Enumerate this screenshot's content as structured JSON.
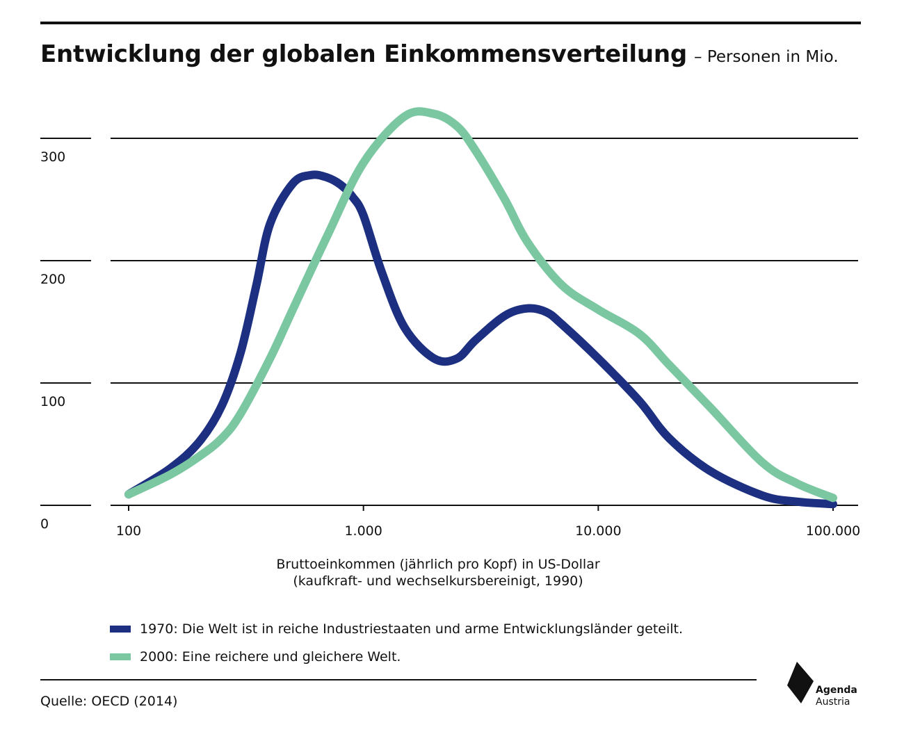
{
  "header": {
    "title": "Entwicklung der globalen Einkommensverteilung",
    "subtitle": "– Personen in Mio."
  },
  "chart_data": {
    "type": "line",
    "title": "Entwicklung der globalen Einkommensverteilung",
    "subtitle": "– Personen in Mio.",
    "xlabel_line1": "Bruttoeinkommen (jährlich pro Kopf) in US-Dollar",
    "xlabel_line2": "(kaufkraft- und wechselkursbereinigt, 1990)",
    "ylabel": "",
    "x_scale": "log",
    "xlim": [
      100,
      100000
    ],
    "ylim": [
      0,
      300
    ],
    "x_ticks": [
      100,
      1000,
      10000,
      100000
    ],
    "x_tick_labels": [
      "100",
      "1.000",
      "10.000",
      "100.000"
    ],
    "y_ticks": [
      0,
      100,
      200,
      300
    ],
    "y_tick_labels": [
      "0",
      "100",
      "200",
      "300"
    ],
    "grid": "horizontal",
    "legend_position": "bottom",
    "series": [
      {
        "name": "1970: Die Welt ist in reiche Industriestaaten und arme Entwicklungsländer geteilt.",
        "color": "#1c2f80",
        "points": [
          [
            100,
            9
          ],
          [
            150,
            30
          ],
          [
            200,
            52
          ],
          [
            250,
            82
          ],
          [
            300,
            125
          ],
          [
            350,
            180
          ],
          [
            400,
            230
          ],
          [
            500,
            263
          ],
          [
            600,
            270
          ],
          [
            700,
            268
          ],
          [
            800,
            262
          ],
          [
            900,
            252
          ],
          [
            1000,
            237
          ],
          [
            1200,
            190
          ],
          [
            1500,
            145
          ],
          [
            2000,
            120
          ],
          [
            2500,
            120
          ],
          [
            3000,
            135
          ],
          [
            4000,
            155
          ],
          [
            5000,
            161
          ],
          [
            6000,
            158
          ],
          [
            7000,
            148
          ],
          [
            10000,
            120
          ],
          [
            15000,
            85
          ],
          [
            20000,
            55
          ],
          [
            30000,
            28
          ],
          [
            50000,
            8
          ],
          [
            70000,
            3
          ],
          [
            100000,
            1
          ]
        ]
      },
      {
        "name": "2000: Eine reichere und gleichere Welt.",
        "color": "#7bc7a2",
        "points": [
          [
            100,
            9
          ],
          [
            150,
            25
          ],
          [
            200,
            40
          ],
          [
            250,
            55
          ],
          [
            300,
            75
          ],
          [
            400,
            120
          ],
          [
            500,
            160
          ],
          [
            700,
            220
          ],
          [
            1000,
            280
          ],
          [
            1500,
            318
          ],
          [
            2000,
            320
          ],
          [
            2500,
            310
          ],
          [
            3000,
            290
          ],
          [
            4000,
            250
          ],
          [
            5000,
            215
          ],
          [
            7000,
            180
          ],
          [
            10000,
            160
          ],
          [
            15000,
            140
          ],
          [
            20000,
            115
          ],
          [
            30000,
            80
          ],
          [
            50000,
            35
          ],
          [
            70000,
            18
          ],
          [
            100000,
            6
          ]
        ]
      }
    ]
  },
  "source": "Quelle: OECD (2014)",
  "logo": {
    "line1": "Agenda",
    "line2": "Austria"
  }
}
